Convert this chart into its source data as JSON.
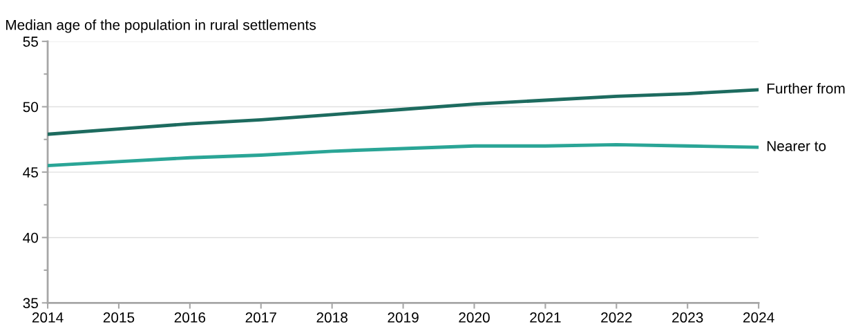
{
  "chart_data": {
    "type": "line",
    "title": "Median age of the population in rural settlements",
    "x": [
      2014,
      2015,
      2016,
      2017,
      2018,
      2019,
      2020,
      2021,
      2022,
      2023,
      2024
    ],
    "series": [
      {
        "name": "Further from",
        "color": "#1d6b5f",
        "values": [
          47.9,
          48.3,
          48.7,
          49.0,
          49.4,
          49.8,
          50.2,
          50.5,
          50.8,
          51.0,
          51.3
        ]
      },
      {
        "name": "Nearer to",
        "color": "#2aa596",
        "values": [
          45.5,
          45.8,
          46.1,
          46.3,
          46.6,
          46.8,
          47.0,
          47.0,
          47.1,
          47.0,
          46.9
        ]
      }
    ],
    "xlim": [
      2014,
      2024
    ],
    "xticks": [
      2014,
      2015,
      2016,
      2017,
      2018,
      2019,
      2020,
      2021,
      2022,
      2023,
      2024
    ],
    "ylim": [
      35,
      55
    ],
    "yticks": [
      35,
      {
        "value": 37.5,
        "label": null
      },
      40,
      {
        "value": 42.5,
        "label": null
      },
      45,
      {
        "value": 47.5,
        "label": null
      },
      50,
      {
        "value": 52.5,
        "label": null
      },
      55
    ],
    "grid": "y",
    "legend": false,
    "marker": "none",
    "line_style": "solid"
  }
}
